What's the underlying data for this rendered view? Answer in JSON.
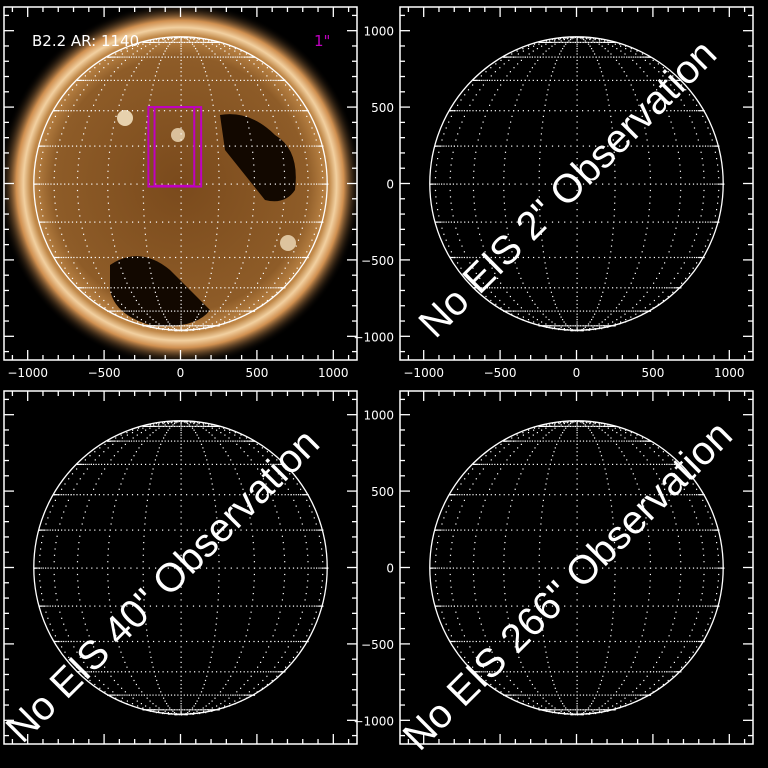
{
  "panels": [
    {
      "id": "aia-image",
      "label": "B2.2 AR: 1140",
      "resolution_label": "1\"",
      "has_image": true,
      "overlay": ""
    },
    {
      "id": "eis-2",
      "overlay": "No EIS 2\" Observation",
      "has_image": false
    },
    {
      "id": "eis-40",
      "overlay": "No EIS 40\" Observation",
      "has_image": false
    },
    {
      "id": "eis-266",
      "overlay": "No EIS 266\" Observation",
      "has_image": false
    }
  ],
  "axes": {
    "x_ticks": [
      -1000,
      -500,
      0,
      500,
      1000
    ],
    "y_ticks": [
      1000,
      500,
      0,
      -500,
      -1000
    ],
    "range": [
      -1155,
      1155
    ],
    "minor_step": 100
  },
  "fov_boxes": [
    {
      "x": [
        -210,
        135
      ],
      "y": [
        500,
        -20
      ]
    },
    {
      "x": [
        -170,
        90
      ],
      "y": [
        500,
        -15
      ]
    }
  ],
  "colors": {
    "box": "#c000c0",
    "grid": "#ffffff",
    "sun_core": "#8a5a28",
    "sun_limb": "#f0c890"
  }
}
